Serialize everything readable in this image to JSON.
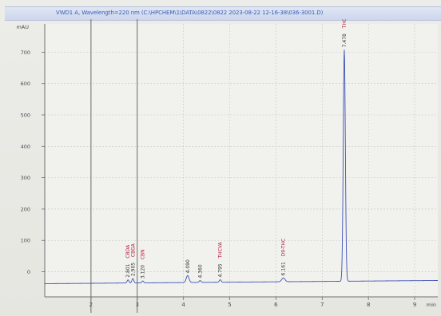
{
  "window": {
    "title": "VWD1 A, Wavelength=220 nm (C:\\HPCHEM\\1\\DATA\\0822\\0822 2023-08-22 12-16-38\\036-3001.D)"
  },
  "chart_data": {
    "type": "line",
    "title": "",
    "xlabel": "min",
    "ylabel": "mAU",
    "xlim": [
      1.0,
      9.5
    ],
    "ylim": [
      -80,
      790
    ],
    "x_ticks": [
      2,
      3,
      4,
      5,
      6,
      7,
      8,
      9
    ],
    "x_tick_labels": [
      "2",
      "3",
      "4",
      "5",
      "6",
      "7",
      "8",
      "9"
    ],
    "y_ticks": [
      0,
      100,
      200,
      300,
      400,
      500,
      600,
      700
    ],
    "y_tick_labels": [
      "0",
      "100",
      "200",
      "300",
      "400",
      "500",
      "600",
      "700"
    ],
    "grid": true,
    "baseline_mau": -38,
    "markers_x": [
      2.0,
      3.0
    ],
    "peaks": [
      {
        "rt": 2.801,
        "height": 10,
        "width": 0.04,
        "rt_label": "2.801",
        "name": "CBDA"
      },
      {
        "rt": 2.905,
        "height": 14,
        "width": 0.04,
        "rt_label": "2.905",
        "name": "CBGA"
      },
      {
        "rt": 3.12,
        "height": 6,
        "width": 0.04,
        "rt_label": "3.120",
        "name": "CBN"
      },
      {
        "rt": 4.09,
        "height": 22,
        "width": 0.06,
        "rt_label": "4.090",
        "name": ""
      },
      {
        "rt": 4.36,
        "height": 6,
        "width": 0.04,
        "rt_label": "4.360",
        "name": ""
      },
      {
        "rt": 4.795,
        "height": 8,
        "width": 0.04,
        "rt_label": "4.795",
        "name": "THCVA"
      },
      {
        "rt": 6.161,
        "height": 12,
        "width": 0.07,
        "rt_label": "6.161",
        "name": "D9-THC"
      },
      {
        "rt": 7.478,
        "height": 738,
        "width": 0.045,
        "rt_label": "7.478",
        "name": "THCA"
      }
    ],
    "line_color": "#3f52b6",
    "label_color": "#b01c3a",
    "grid_color": "#c8c8c2",
    "axis_color": "#6d6d6d"
  }
}
